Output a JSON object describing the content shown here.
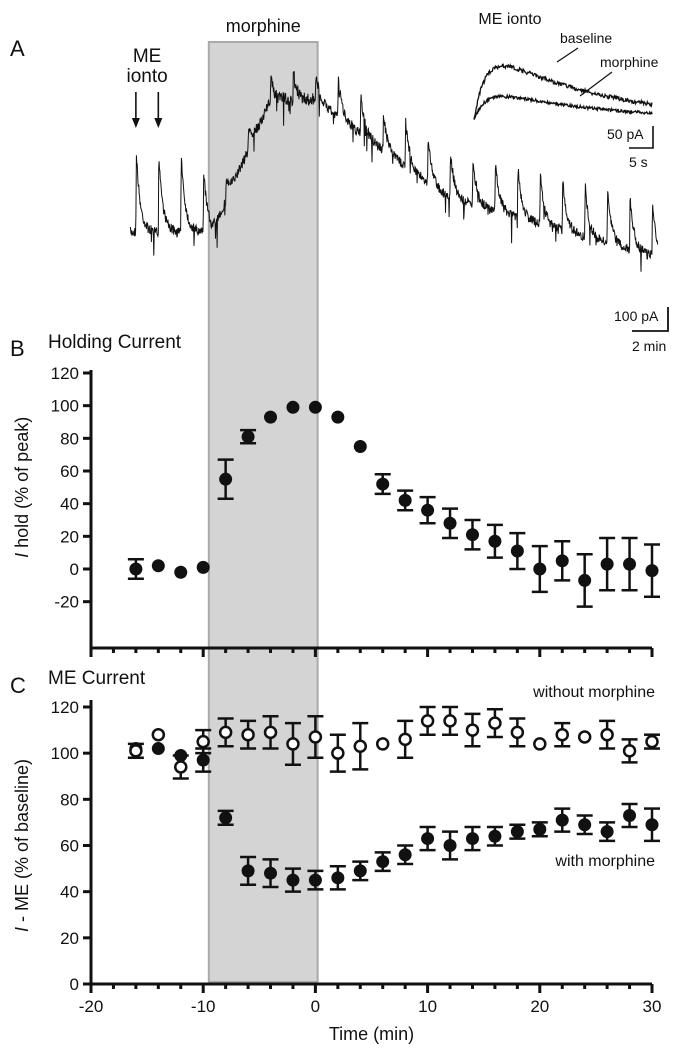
{
  "panels": {
    "a": {
      "letter": "A",
      "shade_label": "morphine",
      "me_label_1": "ME",
      "me_label_2": "ionto",
      "inset_title": "ME ionto",
      "inset_baseline": "baseline",
      "inset_morphine": "morphine",
      "inset_scale_y": "50 pA",
      "inset_scale_x": "5 s",
      "scale_y": "100 pA",
      "scale_x": "2 min"
    },
    "b": {
      "letter": "B",
      "title": "Holding Current",
      "ylabel_italic": "I",
      "ylabel_rest": " hold (% of peak)"
    },
    "c": {
      "letter": "C",
      "title": "ME Current",
      "ylabel_italic": "I",
      "ylabel_rest": " - ME (% of baseline)",
      "annot_without": "without morphine",
      "annot_with": "with morphine"
    }
  },
  "morphine_period": [
    -9.5,
    0.2
  ],
  "colors": {
    "shade_fill": "#d4d4d4",
    "shade_edge": "#a9a9a9",
    "ink": "#111111"
  },
  "chart_data": [
    {
      "type": "line",
      "panel": "A",
      "description": "continuous current trace with periodic ME-evoked transients",
      "time_range_min": [
        -16.5,
        30.5
      ],
      "me_application_times": [
        -16,
        -14,
        -12,
        -10,
        -8,
        -6,
        -4,
        -2,
        0,
        2,
        4,
        6,
        8,
        10,
        12,
        14,
        16,
        18,
        20,
        22,
        24,
        26,
        28,
        30
      ],
      "scale_bar": {
        "y": "100 pA",
        "x": "2 min"
      },
      "inset": {
        "title": "ME ionto",
        "series": [
          {
            "name": "baseline"
          },
          {
            "name": "morphine"
          }
        ],
        "scale_bar": {
          "y": "50 pA",
          "x": "5 s"
        }
      }
    },
    {
      "type": "scatter",
      "panel": "B",
      "title": "Holding Current",
      "ylabel": "I hold (% of peak)",
      "xlim": [
        -20,
        30
      ],
      "ylim": [
        -30,
        120
      ],
      "yticks": [
        -20,
        0,
        20,
        40,
        60,
        80,
        100,
        120
      ],
      "points": [
        {
          "x": -16,
          "y": 0,
          "err": 6
        },
        {
          "x": -14,
          "y": 2,
          "err": 0
        },
        {
          "x": -12,
          "y": -2,
          "err": 0
        },
        {
          "x": -10,
          "y": 1,
          "err": 0
        },
        {
          "x": -8,
          "y": 55,
          "err": 12
        },
        {
          "x": -6,
          "y": 81,
          "err": 4
        },
        {
          "x": -4,
          "y": 93,
          "err": 0
        },
        {
          "x": -2,
          "y": 99,
          "err": 0
        },
        {
          "x": 0,
          "y": 99,
          "err": 0
        },
        {
          "x": 2,
          "y": 93,
          "err": 0
        },
        {
          "x": 4,
          "y": 75,
          "err": 0
        },
        {
          "x": 6,
          "y": 52,
          "err": 6
        },
        {
          "x": 8,
          "y": 42,
          "err": 6
        },
        {
          "x": 10,
          "y": 36,
          "err": 8
        },
        {
          "x": 12,
          "y": 28,
          "err": 9
        },
        {
          "x": 14,
          "y": 21,
          "err": 9
        },
        {
          "x": 16,
          "y": 17,
          "err": 10
        },
        {
          "x": 18,
          "y": 11,
          "err": 11
        },
        {
          "x": 20,
          "y": 0,
          "err": 14
        },
        {
          "x": 22,
          "y": 5,
          "err": 12
        },
        {
          "x": 24,
          "y": -7,
          "err": 16
        },
        {
          "x": 26,
          "y": 3,
          "err": 16
        },
        {
          "x": 28,
          "y": 3,
          "err": 16
        },
        {
          "x": 30,
          "y": -1,
          "err": 16
        }
      ]
    },
    {
      "type": "scatter",
      "panel": "C",
      "title": "ME Current",
      "xlabel": "Time (min)",
      "ylabel": "I - ME (% of baseline)",
      "xlim": [
        -20,
        30
      ],
      "ylim": [
        0,
        120
      ],
      "xticks": [
        -20,
        -10,
        0,
        10,
        20,
        30
      ],
      "yticks": [
        0,
        20,
        40,
        60,
        80,
        100,
        120
      ],
      "series": [
        {
          "name": "without morphine",
          "marker": "open-circle",
          "points": [
            {
              "x": -16,
              "y": 101,
              "err": 3
            },
            {
              "x": -14,
              "y": 108,
              "err": 0
            },
            {
              "x": -12,
              "y": 94,
              "err": 5
            },
            {
              "x": -10,
              "y": 105,
              "err": 5
            },
            {
              "x": -8,
              "y": 109,
              "err": 6
            },
            {
              "x": -6,
              "y": 108,
              "err": 6
            },
            {
              "x": -4,
              "y": 109,
              "err": 7
            },
            {
              "x": -2,
              "y": 104,
              "err": 9
            },
            {
              "x": 0,
              "y": 107,
              "err": 9
            },
            {
              "x": 2,
              "y": 100,
              "err": 8
            },
            {
              "x": 4,
              "y": 103,
              "err": 10
            },
            {
              "x": 6,
              "y": 104,
              "err": 0
            },
            {
              "x": 8,
              "y": 106,
              "err": 8
            },
            {
              "x": 10,
              "y": 114,
              "err": 6
            },
            {
              "x": 12,
              "y": 114,
              "err": 6
            },
            {
              "x": 14,
              "y": 110,
              "err": 7
            },
            {
              "x": 16,
              "y": 113,
              "err": 6
            },
            {
              "x": 18,
              "y": 109,
              "err": 6
            },
            {
              "x": 20,
              "y": 104,
              "err": 0
            },
            {
              "x": 22,
              "y": 108,
              "err": 5
            },
            {
              "x": 24,
              "y": 107,
              "err": 0
            },
            {
              "x": 26,
              "y": 108,
              "err": 6
            },
            {
              "x": 28,
              "y": 101,
              "err": 5
            },
            {
              "x": 30,
              "y": 105,
              "err": 3
            }
          ]
        },
        {
          "name": "with morphine",
          "marker": "filled-circle",
          "points": [
            {
              "x": -16,
              "y": 102,
              "err": 0
            },
            {
              "x": -14,
              "y": 102,
              "err": 0
            },
            {
              "x": -12,
              "y": 99,
              "err": 0
            },
            {
              "x": -10,
              "y": 97,
              "err": 5
            },
            {
              "x": -8,
              "y": 72,
              "err": 3
            },
            {
              "x": -6,
              "y": 49,
              "err": 6
            },
            {
              "x": -4,
              "y": 48,
              "err": 6
            },
            {
              "x": -2,
              "y": 45,
              "err": 5
            },
            {
              "x": 0,
              "y": 45,
              "err": 4
            },
            {
              "x": 2,
              "y": 46,
              "err": 5
            },
            {
              "x": 4,
              "y": 49,
              "err": 4
            },
            {
              "x": 6,
              "y": 53,
              "err": 4
            },
            {
              "x": 8,
              "y": 56,
              "err": 4
            },
            {
              "x": 10,
              "y": 63,
              "err": 5
            },
            {
              "x": 12,
              "y": 60,
              "err": 6
            },
            {
              "x": 14,
              "y": 63,
              "err": 5
            },
            {
              "x": 16,
              "y": 64,
              "err": 4
            },
            {
              "x": 18,
              "y": 66,
              "err": 3
            },
            {
              "x": 20,
              "y": 67,
              "err": 3
            },
            {
              "x": 22,
              "y": 71,
              "err": 5
            },
            {
              "x": 24,
              "y": 69,
              "err": 4
            },
            {
              "x": 26,
              "y": 66,
              "err": 4
            },
            {
              "x": 28,
              "y": 73,
              "err": 5
            },
            {
              "x": 30,
              "y": 69,
              "err": 7
            }
          ]
        }
      ]
    }
  ]
}
